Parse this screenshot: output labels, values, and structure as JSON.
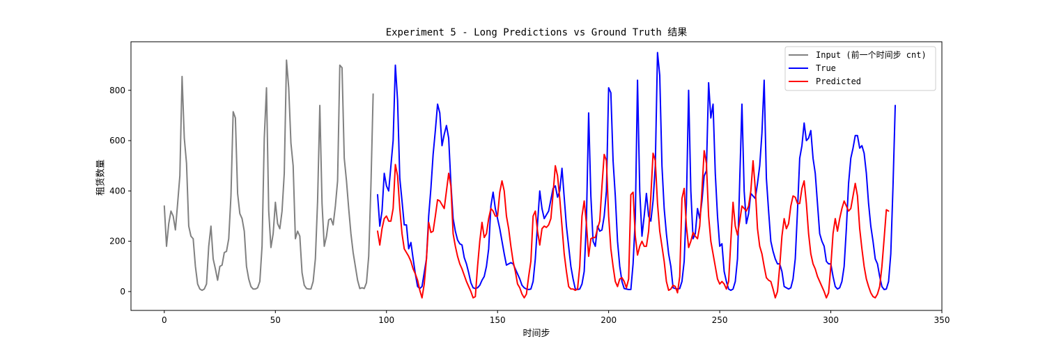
{
  "chart_data": {
    "type": "line",
    "title": "Experiment 5 - Long Predictions vs Ground Truth 结果",
    "xlabel": "时间步",
    "ylabel": "租赁数量",
    "xlim": [
      -15,
      350
    ],
    "ylim": [
      -75,
      993
    ],
    "xticks": [
      0,
      50,
      100,
      150,
      200,
      250,
      300,
      350
    ],
    "yticks": [
      0,
      200,
      400,
      600,
      800
    ],
    "grid": false,
    "legend_position": "top-right",
    "series": [
      {
        "name": "Input (前一个时间步 cnt)",
        "color": "#808080",
        "x_start": 0,
        "values": [
          340,
          180,
          270,
          320,
          300,
          245,
          350,
          460,
          855,
          610,
          510,
          260,
          220,
          210,
          100,
          30,
          10,
          5,
          10,
          30,
          180,
          260,
          130,
          90,
          45,
          100,
          105,
          155,
          160,
          210,
          380,
          715,
          690,
          390,
          310,
          290,
          240,
          100,
          50,
          20,
          10,
          10,
          15,
          40,
          180,
          610,
          810,
          320,
          175,
          230,
          355,
          270,
          250,
          320,
          470,
          920,
          810,
          590,
          500,
          210,
          240,
          220,
          75,
          25,
          12,
          10,
          10,
          40,
          130,
          360,
          740,
          350,
          180,
          220,
          285,
          290,
          265,
          340,
          440,
          900,
          890,
          530,
          440,
          330,
          230,
          155,
          100,
          45,
          12,
          15,
          12,
          35,
          140,
          420,
          785
        ]
      },
      {
        "name": "True",
        "color": "#0000ff",
        "x_start": 96,
        "values": [
          385,
          260,
          320,
          470,
          420,
          400,
          500,
          600,
          900,
          760,
          450,
          360,
          265,
          265,
          170,
          195,
          130,
          70,
          20,
          12,
          20,
          75,
          130,
          300,
          410,
          545,
          640,
          745,
          710,
          580,
          625,
          660,
          610,
          430,
          290,
          240,
          205,
          190,
          185,
          135,
          110,
          75,
          35,
          15,
          12,
          15,
          25,
          45,
          60,
          100,
          170,
          340,
          395,
          330,
          290,
          250,
          200,
          150,
          105,
          110,
          115,
          110,
          90,
          70,
          50,
          25,
          15,
          10,
          8,
          10,
          40,
          130,
          270,
          400,
          330,
          290,
          305,
          320,
          365,
          410,
          420,
          375,
          400,
          490,
          375,
          260,
          180,
          100,
          50,
          10,
          8,
          10,
          30,
          80,
          280,
          710,
          380,
          200,
          180,
          260,
          240,
          245,
          300,
          400,
          810,
          790,
          520,
          380,
          200,
          100,
          40,
          12,
          10,
          8,
          8,
          110,
          290,
          840,
          400,
          220,
          300,
          390,
          300,
          280,
          360,
          500,
          950,
          860,
          500,
          330,
          230,
          150,
          100,
          15,
          12,
          10,
          12,
          40,
          120,
          350,
          800,
          400,
          210,
          230,
          330,
          290,
          360,
          460,
          480,
          830,
          690,
          745,
          470,
          300,
          180,
          190,
          80,
          40,
          10,
          5,
          10,
          40,
          130,
          440,
          745,
          400,
          270,
          310,
          390,
          380,
          370,
          430,
          500,
          630,
          840,
          450,
          320,
          200,
          160,
          130,
          110,
          110,
          80,
          20,
          15,
          10,
          15,
          50,
          130,
          320,
          530,
          580,
          670,
          600,
          610,
          640,
          530,
          470,
          350,
          230,
          200,
          180,
          120,
          110,
          110,
          60,
          20,
          10,
          15,
          40,
          100,
          250,
          430,
          530,
          570,
          620,
          620,
          570,
          580,
          550,
          470,
          350,
          260,
          200,
          130,
          110,
          60,
          20,
          8,
          10,
          40,
          150,
          420,
          740
        ]
      },
      {
        "name": "Predicted",
        "color": "#ff0000",
        "x_start": 96,
        "values": [
          240,
          185,
          250,
          290,
          300,
          280,
          280,
          330,
          505,
          460,
          330,
          230,
          170,
          155,
          140,
          120,
          90,
          70,
          45,
          5,
          -25,
          30,
          130,
          275,
          235,
          240,
          300,
          365,
          360,
          345,
          330,
          400,
          470,
          420,
          230,
          180,
          140,
          110,
          90,
          65,
          40,
          20,
          0,
          -25,
          -20,
          100,
          200,
          275,
          215,
          230,
          290,
          330,
          320,
          300,
          300,
          395,
          440,
          400,
          300,
          250,
          180,
          120,
          80,
          30,
          15,
          -10,
          -25,
          -10,
          60,
          120,
          300,
          320,
          240,
          185,
          250,
          260,
          255,
          265,
          290,
          390,
          500,
          460,
          370,
          260,
          150,
          80,
          20,
          10,
          10,
          5,
          10,
          100,
          300,
          360,
          270,
          140,
          210,
          215,
          215,
          250,
          280,
          420,
          545,
          520,
          300,
          170,
          100,
          40,
          20,
          50,
          55,
          40,
          15,
          50,
          385,
          395,
          220,
          145,
          180,
          200,
          180,
          180,
          240,
          380,
          550,
          520,
          350,
          240,
          180,
          120,
          40,
          5,
          10,
          25,
          20,
          -5,
          60,
          370,
          410,
          260,
          175,
          200,
          235,
          220,
          210,
          260,
          400,
          560,
          510,
          300,
          200,
          150,
          100,
          50,
          30,
          40,
          30,
          10,
          40,
          200,
          355,
          260,
          225,
          280,
          340,
          330,
          320,
          340,
          400,
          520,
          410,
          250,
          180,
          150,
          100,
          55,
          45,
          40,
          10,
          -25,
          0,
          100,
          220,
          290,
          250,
          270,
          340,
          380,
          375,
          350,
          350,
          410,
          440,
          350,
          230,
          150,
          110,
          90,
          60,
          40,
          20,
          0,
          -25,
          -5,
          100,
          230,
          290,
          240,
          290,
          330,
          360,
          340,
          320,
          330,
          380,
          430,
          380,
          250,
          170,
          100,
          50,
          20,
          -5,
          -20,
          -25,
          -10,
          20,
          100,
          210,
          325,
          320
        ]
      }
    ]
  }
}
